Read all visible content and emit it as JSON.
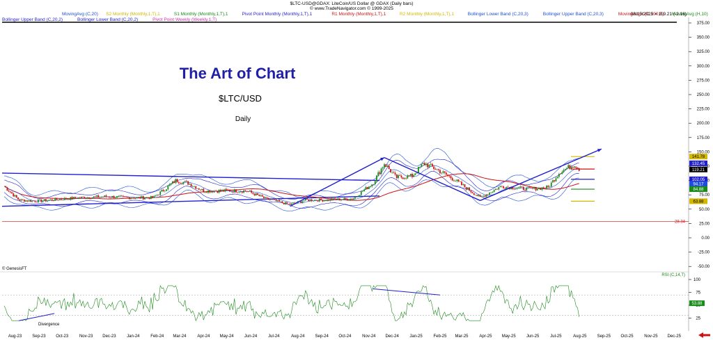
{
  "header": {
    "title_line1": "$LTC-USD@GDAX: LiteCoin/US Dollar @ GDAX  (Daily bars)",
    "title_line2": "© www.TradeNavigator.com © 1999-2025",
    "date_readout": "08/15/2025 = 119.21 (-2.16)"
  },
  "legend": {
    "row1": [
      {
        "label": "MovingAvg (C,20)",
        "color": "#1f4fd8"
      },
      {
        "label": "S2 Monthly (Monthly,1,T),1",
        "color": "#d4b800"
      },
      {
        "label": "S1 Monthly (Monthly,1,T),1",
        "color": "#1a8a1a"
      },
      {
        "label": "Pivot Point Monthly (Monthly,1,T),1",
        "color": "#1f1fcc"
      },
      {
        "label": "R1 Monthly (Monthly,1,T),1",
        "color": "#cc1111"
      },
      {
        "label": "R2 Monthly (Monthly,1,T),1",
        "color": "#d4b800"
      },
      {
        "label": "Bollinger Lower Band (C,20,3)",
        "color": "#1f4fd8"
      },
      {
        "label": "Bollinger Upper Band (C,20,3)",
        "color": "#1f4fd8"
      },
      {
        "label": "MovingAvgX (C,200,F)",
        "color": "#cc1111"
      },
      {
        "label": "MovingAvg (H,10)",
        "color": "#1a8a1a"
      }
    ],
    "row2": [
      {
        "label": "Bollinger Upper Band (C,20,2)",
        "color": "#1f1fcc"
      },
      {
        "label": "Bollinger Lower Band (C,20,2)",
        "color": "#1f1fcc"
      },
      {
        "label": "Pivot Point Weekly (Weekly,1,T)",
        "color": "#cc33aa"
      }
    ]
  },
  "overlay": {
    "title": "The Art of Chart",
    "subtitle": "$LTC/USD",
    "timeframe": "Daily"
  },
  "watermark": "© GenesisFT",
  "chart_data": {
    "type": "candlestick",
    "symbol": "$LTC-USD",
    "price_axis": {
      "ticks": [
        "375.00",
        "350.00",
        "325.00",
        "300.00",
        "275.00",
        "250.00",
        "225.00",
        "200.00",
        "175.00",
        "150.00",
        "125.00",
        "100.00",
        "75.00",
        "50.00",
        "25.00",
        "0.00",
        "-25.00",
        "-50.00"
      ],
      "range": [
        -60,
        380
      ]
    },
    "months": [
      "Aug-23",
      "Sep-23",
      "Oct-23",
      "Nov-23",
      "Dec-23",
      "Jan-24",
      "Feb-24",
      "Mar-24",
      "Apr-24",
      "May-24",
      "Jun-24",
      "Jul-24",
      "Aug-24",
      "Sep-24",
      "Oct-24",
      "Nov-24",
      "Dec-24",
      "Jan-25",
      "Feb-25",
      "Mar-25",
      "Apr-25",
      "May-25",
      "Jun-25",
      "Jul-25",
      "Aug-25",
      "Sep-25",
      "Oct-25",
      "Nov-25",
      "Dec-25"
    ],
    "price_path": [
      [
        "2023-08-01",
        90
      ],
      [
        "2023-08-20",
        66
      ],
      [
        "2023-09-10",
        64
      ],
      [
        "2023-10-01",
        66
      ],
      [
        "2023-11-05",
        70
      ],
      [
        "2023-12-10",
        72
      ],
      [
        "2024-01-10",
        70
      ],
      [
        "2024-02-10",
        70
      ],
      [
        "2024-02-28",
        88
      ],
      [
        "2024-03-10",
        100
      ],
      [
        "2024-03-25",
        96
      ],
      [
        "2024-04-15",
        82
      ],
      [
        "2024-05-15",
        82
      ],
      [
        "2024-06-10",
        82
      ],
      [
        "2024-07-05",
        68
      ],
      [
        "2024-08-05",
        58
      ],
      [
        "2024-08-25",
        66
      ],
      [
        "2024-09-20",
        66
      ],
      [
        "2024-10-25",
        68
      ],
      [
        "2024-11-20",
        95
      ],
      [
        "2024-12-05",
        130
      ],
      [
        "2024-12-20",
        105
      ],
      [
        "2025-01-10",
        108
      ],
      [
        "2025-01-25",
        130
      ],
      [
        "2025-02-10",
        120
      ],
      [
        "2025-03-05",
        102
      ],
      [
        "2025-04-08",
        70
      ],
      [
        "2025-05-05",
        90
      ],
      [
        "2025-06-10",
        85
      ],
      [
        "2025-07-05",
        88
      ],
      [
        "2025-07-20",
        115
      ],
      [
        "2025-08-08",
        128
      ],
      [
        "2025-08-15",
        119.21
      ]
    ],
    "labels": {
      "last_price": "119.21",
      "bb_upper": "132.45",
      "r2_label": "141.78",
      "pivot_label": "102.05",
      "ma20_label": "94.17",
      "s1_label": "84.88",
      "s2_label": "63.88",
      "low_line_label": "28.34"
    },
    "levels": {
      "r2": 141.78,
      "r1": 120,
      "pivot": 102.05,
      "s1": 84.88,
      "s2": 63.88,
      "low_line": 28.34
    },
    "rsi": {
      "label": "RSI (C,14,T)",
      "ticks": [
        "100",
        "75",
        "50",
        "25"
      ],
      "range": [
        0,
        100
      ],
      "last_value_label": "53.88",
      "overbought": 70,
      "oversold": 30,
      "annotation": "Divergence"
    }
  }
}
